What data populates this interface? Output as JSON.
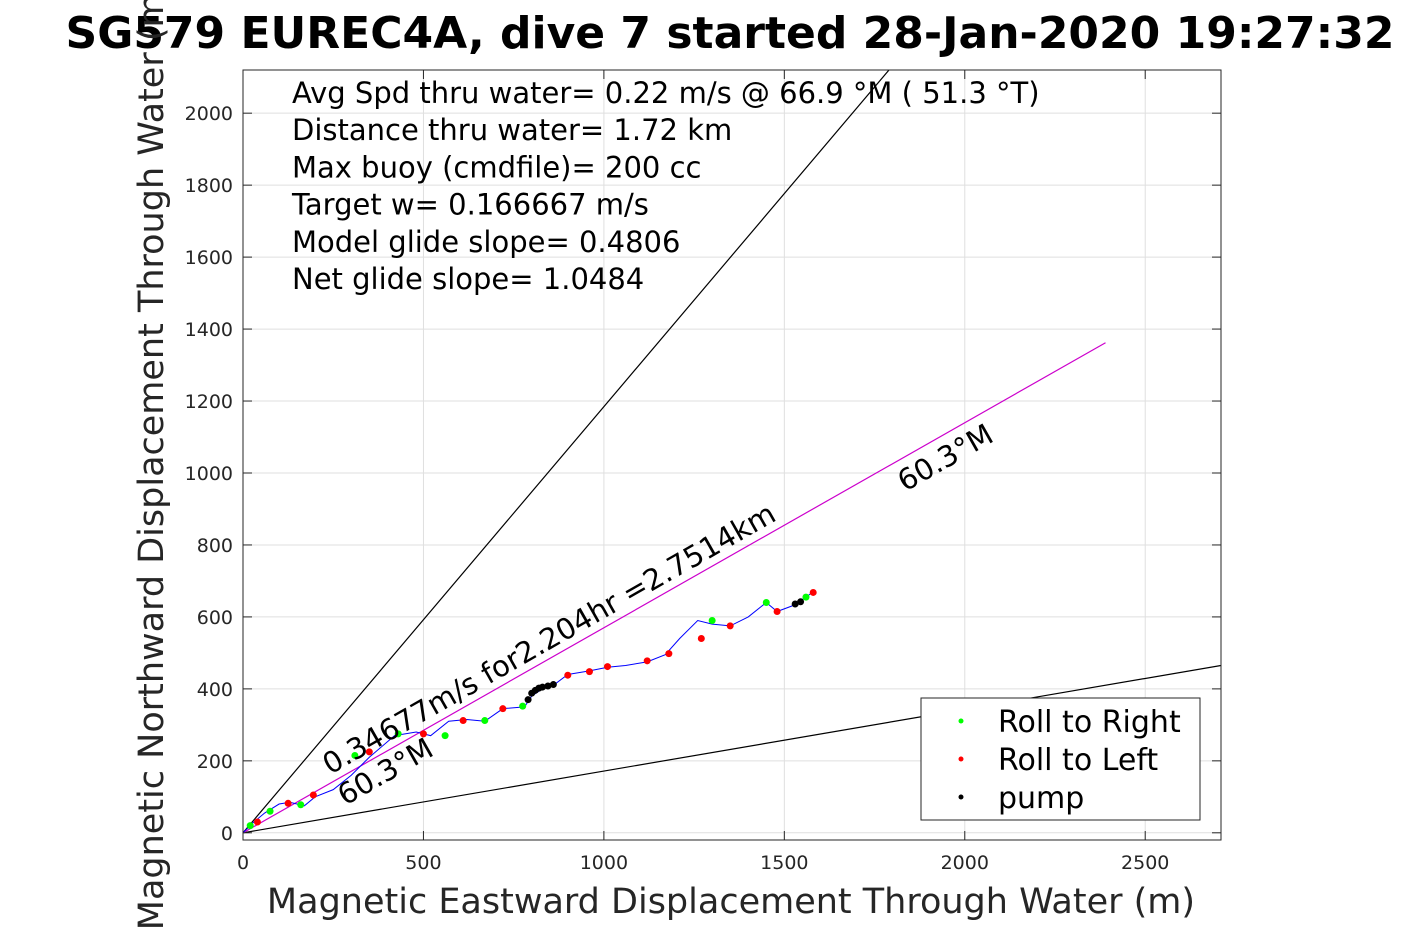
{
  "chart_data": {
    "type": "scatter",
    "title": "SG579 EUREC4A, dive 7 started 28-Jan-2020 19:27:32",
    "xlabel": "Magnetic Eastward Displacement Through Water (m)",
    "ylabel": "Magnetic Northward Displacement Through Water (m)",
    "xlim": [
      0,
      2710
    ],
    "ylim": [
      -20,
      2120
    ],
    "xticks": [
      0,
      500,
      1000,
      1500,
      2000,
      2500
    ],
    "yticks": [
      0,
      200,
      400,
      600,
      800,
      1000,
      1200,
      1400,
      1600,
      1800,
      2000
    ],
    "grid": true,
    "annotations": [
      "Avg Spd thru water=  0.22 m/s @  66.9 °M ( 51.3 °T)",
      "Distance thru water=  1.72 km",
      "Max buoy (cmdfile)= 200 cc",
      "Target w= 0.166667 m/s",
      "Model glide slope= 0.4806",
      "Net glide slope= 1.0484"
    ],
    "rotated_labels": [
      {
        "text": "0.34677m/s for2.204hr =2.7514km"
      },
      {
        "text": "60.3°M"
      },
      {
        "text": "60.3°M"
      }
    ],
    "reference_lines": [
      {
        "name": "upper bound",
        "color": "#000000",
        "x": [
          0,
          1790
        ],
        "y": [
          0,
          2120
        ]
      },
      {
        "name": "lower bound",
        "color": "#000000",
        "x": [
          0,
          2710
        ],
        "y": [
          0,
          465
        ]
      },
      {
        "name": "heading",
        "color": "#cc00cc",
        "x": [
          0,
          2390
        ],
        "y": [
          0,
          1362
        ]
      }
    ],
    "track": {
      "color": "#0000ff",
      "x": [
        0,
        30,
        60,
        100,
        130,
        170,
        200,
        250,
        300,
        350,
        420,
        480,
        520,
        570,
        620,
        670,
        720,
        780,
        800,
        830,
        860,
        900,
        960,
        1010,
        1060,
        1120,
        1170,
        1210,
        1260,
        1300,
        1350,
        1400,
        1450,
        1480,
        1520,
        1560,
        1580
      ],
      "y": [
        0,
        30,
        55,
        80,
        85,
        75,
        100,
        120,
        160,
        210,
        270,
        280,
        270,
        310,
        315,
        310,
        345,
        350,
        380,
        400,
        410,
        440,
        450,
        460,
        465,
        475,
        495,
        540,
        590,
        580,
        575,
        600,
        640,
        615,
        630,
        655,
        670
      ]
    },
    "series": [
      {
        "name": "Roll to Right",
        "color": "#00ff00",
        "x": [
          20,
          75,
          160,
          310,
          430,
          560,
          670,
          775,
          1300,
          1450,
          1560
        ],
        "y": [
          20,
          60,
          78,
          215,
          275,
          270,
          312,
          352,
          590,
          640,
          655
        ]
      },
      {
        "name": "Roll to Left",
        "color": "#ff0000",
        "x": [
          40,
          125,
          195,
          350,
          500,
          610,
          720,
          900,
          960,
          1010,
          1120,
          1180,
          1270,
          1350,
          1480,
          1580
        ],
        "y": [
          30,
          82,
          105,
          225,
          275,
          312,
          345,
          438,
          448,
          462,
          478,
          498,
          540,
          575,
          615,
          668
        ]
      },
      {
        "name": "pump",
        "color": "#000000",
        "x": [
          790,
          800,
          810,
          820,
          830,
          845,
          860,
          1530,
          1545
        ],
        "y": [
          370,
          388,
          396,
          402,
          405,
          408,
          412,
          636,
          642
        ]
      }
    ],
    "legend": {
      "placement": "bottom-right",
      "entries": [
        "Roll to Right",
        "Roll to Left",
        "pump"
      ]
    }
  }
}
